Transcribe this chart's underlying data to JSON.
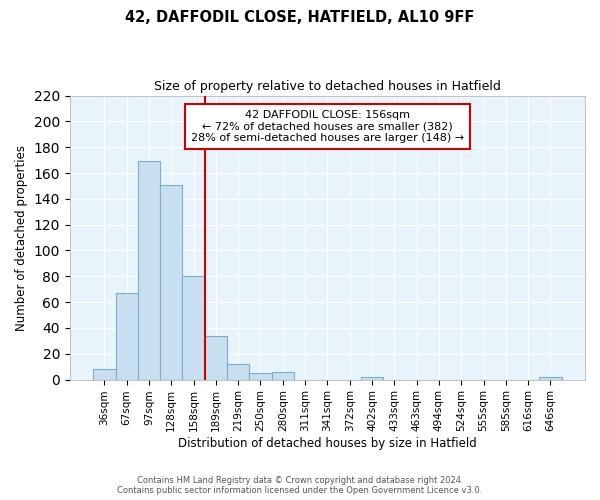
{
  "title": "42, DAFFODIL CLOSE, HATFIELD, AL10 9FF",
  "subtitle": "Size of property relative to detached houses in Hatfield",
  "xlabel": "Distribution of detached houses by size in Hatfield",
  "ylabel": "Number of detached properties",
  "bar_labels": [
    "36sqm",
    "67sqm",
    "97sqm",
    "128sqm",
    "158sqm",
    "189sqm",
    "219sqm",
    "250sqm",
    "280sqm",
    "311sqm",
    "341sqm",
    "372sqm",
    "402sqm",
    "433sqm",
    "463sqm",
    "494sqm",
    "524sqm",
    "555sqm",
    "585sqm",
    "616sqm",
    "646sqm"
  ],
  "bar_values": [
    8,
    67,
    169,
    151,
    80,
    34,
    12,
    5,
    6,
    0,
    0,
    0,
    2,
    0,
    0,
    0,
    0,
    0,
    0,
    0,
    2
  ],
  "bar_color": "#c8dff0",
  "bar_edge_color": "#7aaecf",
  "vline_color": "#cc0000",
  "ylim": [
    0,
    220
  ],
  "yticks": [
    0,
    20,
    40,
    60,
    80,
    100,
    120,
    140,
    160,
    180,
    200,
    220
  ],
  "annotation_title": "42 DAFFODIL CLOSE: 156sqm",
  "annotation_line1": "← 72% of detached houses are smaller (382)",
  "annotation_line2": "28% of semi-detached houses are larger (148) →",
  "annotation_box_color": "#ffffff",
  "annotation_box_edge": "#cc0000",
  "footer1": "Contains HM Land Registry data © Crown copyright and database right 2024.",
  "footer2": "Contains public sector information licensed under the Open Government Licence v3.0.",
  "grid_color": "#c8dff0",
  "bg_color": "#e8f4fc"
}
